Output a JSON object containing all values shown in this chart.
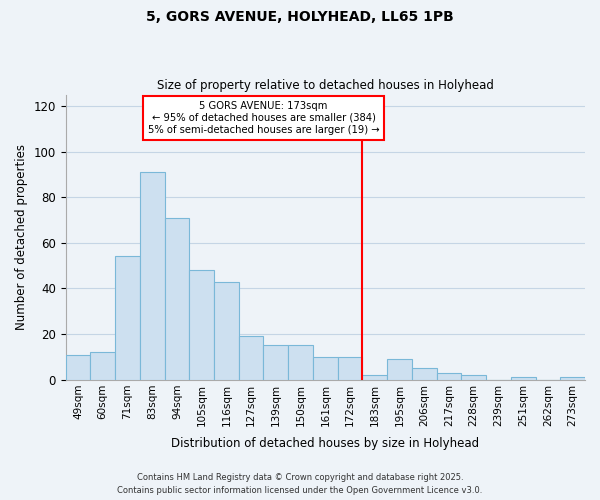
{
  "title": "5, GORS AVENUE, HOLYHEAD, LL65 1PB",
  "subtitle": "Size of property relative to detached houses in Holyhead",
  "xlabel": "Distribution of detached houses by size in Holyhead",
  "ylabel": "Number of detached properties",
  "bar_labels": [
    "49sqm",
    "60sqm",
    "71sqm",
    "83sqm",
    "94sqm",
    "105sqm",
    "116sqm",
    "127sqm",
    "139sqm",
    "150sqm",
    "161sqm",
    "172sqm",
    "183sqm",
    "195sqm",
    "206sqm",
    "217sqm",
    "228sqm",
    "239sqm",
    "251sqm",
    "262sqm",
    "273sqm"
  ],
  "bar_values": [
    11,
    12,
    54,
    91,
    71,
    48,
    43,
    19,
    15,
    15,
    10,
    10,
    2,
    9,
    5,
    3,
    2,
    0,
    1,
    0,
    1
  ],
  "bar_color": "#cde0f0",
  "bar_edge_color": "#7ab8d8",
  "vline_index": 11,
  "vline_color": "red",
  "annotation_title": "5 GORS AVENUE: 173sqm",
  "annotation_line1": "← 95% of detached houses are smaller (384)",
  "annotation_line2": "5% of semi-detached houses are larger (19) →",
  "ylim": [
    0,
    125
  ],
  "yticks": [
    0,
    20,
    40,
    60,
    80,
    100,
    120
  ],
  "footer1": "Contains HM Land Registry data © Crown copyright and database right 2025.",
  "footer2": "Contains public sector information licensed under the Open Government Licence v3.0.",
  "background_color": "#eef3f8",
  "grid_color": "#c5d5e5",
  "plot_bg_color": "#eef3f8"
}
